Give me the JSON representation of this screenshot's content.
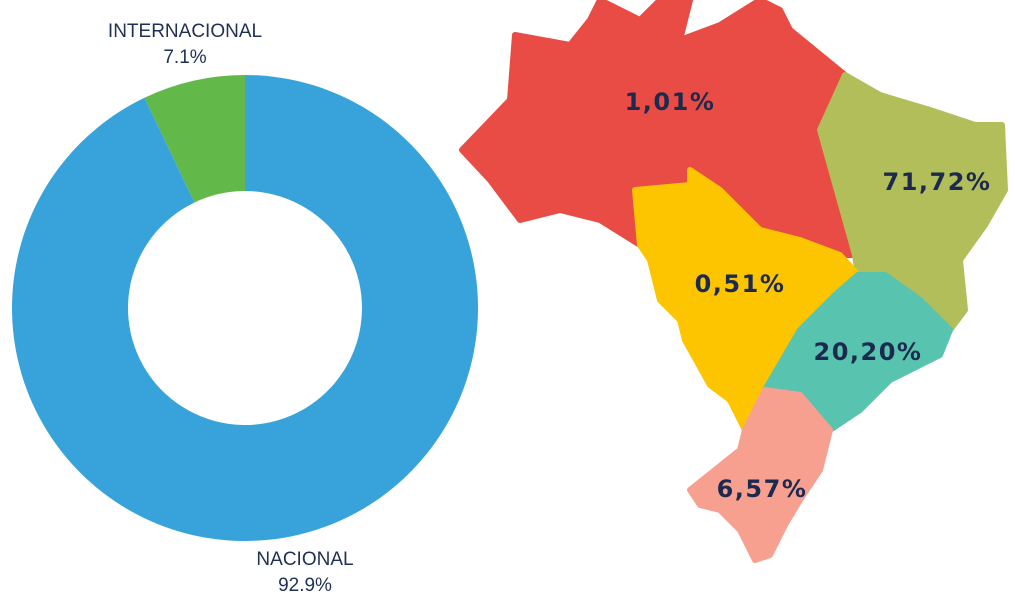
{
  "chart_data": [
    {
      "type": "donut",
      "categories": [
        "INTERNACIONAL",
        "NACIONAL"
      ],
      "values": [
        7.1,
        92.9
      ],
      "value_labels": [
        "7.1%",
        "92.9%"
      ],
      "colors": [
        "#62b94a",
        "#38a3db"
      ]
    },
    {
      "type": "map",
      "values": [
        1.01,
        71.72,
        0.51,
        20.2,
        6.57
      ],
      "value_labels": [
        "1,01%",
        "71,72%",
        "0,51%",
        "20,20%",
        "6,57%"
      ],
      "colors": [
        "#e84c44",
        "#b1be5a",
        "#fdc500",
        "#58c3af",
        "#f7a090"
      ]
    }
  ]
}
